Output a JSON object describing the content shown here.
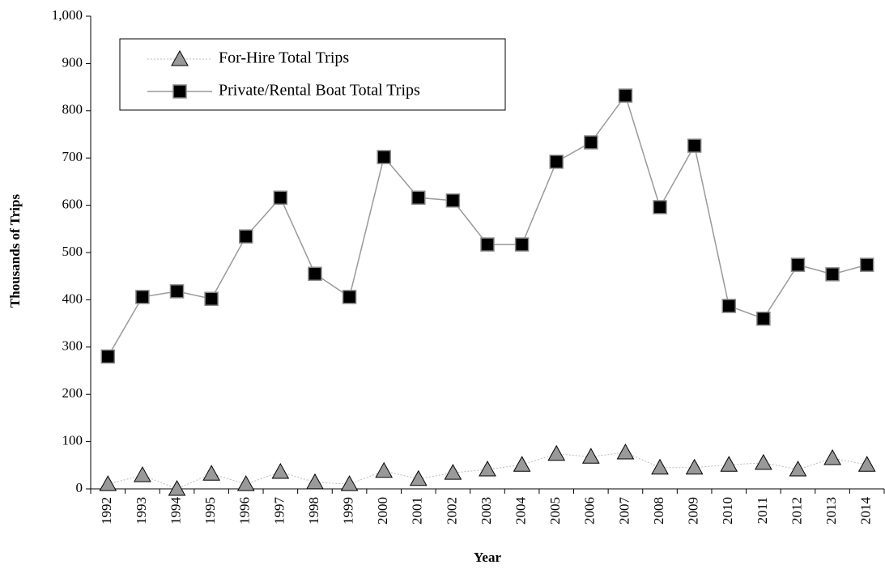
{
  "chart_data": {
    "type": "line",
    "x_label": "Year",
    "y_label": "Thousands of Trips",
    "categories": [
      "1992",
      "1993",
      "1994",
      "1995",
      "1996",
      "1997",
      "1998",
      "1999",
      "2000",
      "2001",
      "2002",
      "2003",
      "2004",
      "2005",
      "2006",
      "2007",
      "2008",
      "2009",
      "2010",
      "2011",
      "2012",
      "2013",
      "2014"
    ],
    "series": [
      {
        "name": "For-Hire Total Trips",
        "color": "#999999",
        "marker": "triangle",
        "values": [
          10,
          29,
          0,
          32,
          10,
          36,
          14,
          10,
          38,
          21,
          34,
          41,
          51,
          74,
          68,
          77,
          45,
          45,
          51,
          55,
          41,
          65,
          51
        ]
      },
      {
        "name": "Private/Rental Boat Total Trips",
        "color": "#000000",
        "marker": "square",
        "values": [
          280,
          406,
          418,
          402,
          534,
          616,
          455,
          406,
          702,
          616,
          610,
          517,
          517,
          692,
          733,
          832,
          596,
          726,
          387,
          360,
          474,
          454,
          474
        ]
      }
    ],
    "ylim": [
      0,
      1000
    ],
    "yticks": [
      0,
      100,
      200,
      300,
      400,
      500,
      600,
      700,
      800,
      900,
      {
        "value": 1000,
        "label": "1,000"
      }
    ],
    "grid": false,
    "legend": "upper left"
  }
}
